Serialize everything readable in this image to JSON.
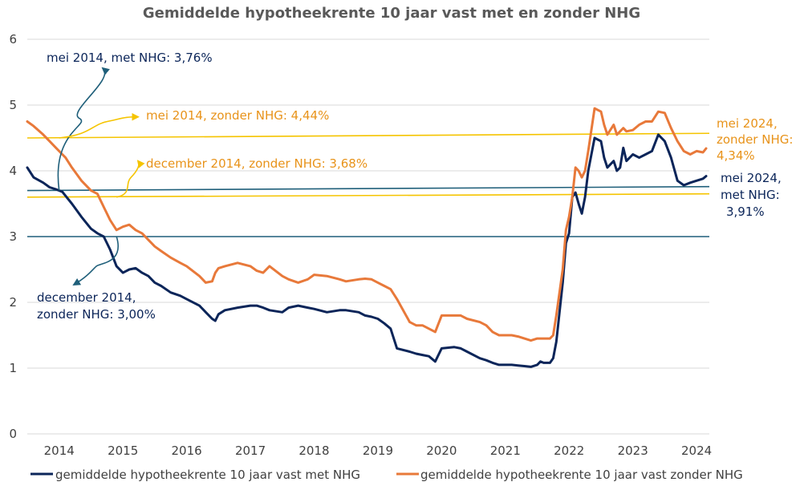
{
  "chart_data": {
    "type": "line",
    "title": "Gemiddelde hypotheekrente 10 jaar vast met en zonder NHG",
    "xlabel": "",
    "ylabel": "",
    "xlim": [
      2013.5,
      2024.2
    ],
    "ylim": [
      0,
      6
    ],
    "grid": true,
    "legend": "bottom",
    "x_ticks": [
      "2014",
      "2015",
      "2016",
      "2017",
      "2018",
      "2019",
      "2020",
      "2021",
      "2022",
      "2023",
      "2024"
    ],
    "y_ticks": [
      "0",
      "1",
      "2",
      "3",
      "4",
      "5",
      "6"
    ],
    "series": [
      {
        "name": "gemiddelde hypotheekrente 10 jaar vast met NHG",
        "color": "#0B2559",
        "x": [
          2013.5,
          2013.6,
          2013.75,
          2013.85,
          2013.95,
          2014.05,
          2014.1,
          2014.2,
          2014.35,
          2014.5,
          2014.6,
          2014.7,
          2014.8,
          2014.9,
          2015.0,
          2015.1,
          2015.2,
          2015.3,
          2015.4,
          2015.5,
          2015.6,
          2015.75,
          2015.9,
          2016.0,
          2016.2,
          2016.3,
          2016.4,
          2016.45,
          2016.5,
          2016.6,
          2016.8,
          2017.0,
          2017.1,
          2017.2,
          2017.3,
          2017.5,
          2017.6,
          2017.75,
          2017.9,
          2018.0,
          2018.2,
          2018.4,
          2018.5,
          2018.7,
          2018.8,
          2018.9,
          2019.0,
          2019.1,
          2019.2,
          2019.3,
          2019.5,
          2019.6,
          2019.7,
          2019.8,
          2019.9,
          2020.0,
          2020.2,
          2020.3,
          2020.4,
          2020.6,
          2020.7,
          2020.8,
          2020.9,
          2021.0,
          2021.1,
          2021.2,
          2021.3,
          2021.4,
          2021.5,
          2021.55,
          2021.6,
          2021.7,
          2021.75,
          2021.8,
          2021.9,
          2021.95,
          2022.0,
          2022.05,
          2022.1,
          2022.15,
          2022.2,
          2022.25,
          2022.3,
          2022.4,
          2022.5,
          2022.55,
          2022.6,
          2022.7,
          2022.75,
          2022.8,
          2022.85,
          2022.9,
          2023.0,
          2023.1,
          2023.2,
          2023.3,
          2023.4,
          2023.5,
          2023.6,
          2023.7,
          2023.8,
          2023.9,
          2024.0,
          2024.1,
          2024.15
        ],
        "y": [
          4.05,
          3.9,
          3.82,
          3.75,
          3.72,
          3.68,
          3.62,
          3.5,
          3.3,
          3.12,
          3.05,
          3.0,
          2.8,
          2.55,
          2.45,
          2.5,
          2.52,
          2.45,
          2.4,
          2.3,
          2.25,
          2.15,
          2.1,
          2.05,
          1.95,
          1.85,
          1.75,
          1.72,
          1.82,
          1.88,
          1.92,
          1.95,
          1.95,
          1.92,
          1.88,
          1.85,
          1.92,
          1.95,
          1.92,
          1.9,
          1.85,
          1.88,
          1.88,
          1.85,
          1.8,
          1.78,
          1.75,
          1.68,
          1.6,
          1.3,
          1.25,
          1.22,
          1.2,
          1.18,
          1.1,
          1.3,
          1.32,
          1.3,
          1.25,
          1.15,
          1.12,
          1.08,
          1.05,
          1.05,
          1.05,
          1.04,
          1.03,
          1.02,
          1.05,
          1.1,
          1.08,
          1.08,
          1.15,
          1.4,
          2.3,
          2.9,
          3.05,
          3.6,
          3.67,
          3.5,
          3.35,
          3.6,
          4.0,
          4.5,
          4.45,
          4.2,
          4.05,
          4.15,
          4.0,
          4.05,
          4.35,
          4.15,
          4.25,
          4.2,
          4.25,
          4.3,
          4.55,
          4.45,
          4.2,
          3.85,
          3.78,
          3.82,
          3.85,
          3.88,
          3.92
        ]
      },
      {
        "name": "gemiddelde hypotheekrente 10 jaar vast zonder NHG",
        "color": "#E8793A",
        "x": [
          2013.5,
          2013.6,
          2013.75,
          2013.85,
          2013.95,
          2014.05,
          2014.1,
          2014.2,
          2014.35,
          2014.5,
          2014.6,
          2014.7,
          2014.8,
          2014.9,
          2015.0,
          2015.1,
          2015.2,
          2015.3,
          2015.4,
          2015.5,
          2015.6,
          2015.75,
          2015.9,
          2016.0,
          2016.2,
          2016.3,
          2016.4,
          2016.45,
          2016.5,
          2016.6,
          2016.8,
          2017.0,
          2017.1,
          2017.2,
          2017.3,
          2017.5,
          2017.6,
          2017.75,
          2017.9,
          2018.0,
          2018.2,
          2018.4,
          2018.5,
          2018.7,
          2018.8,
          2018.9,
          2019.0,
          2019.1,
          2019.2,
          2019.3,
          2019.5,
          2019.6,
          2019.7,
          2019.8,
          2019.9,
          2020.0,
          2020.2,
          2020.3,
          2020.4,
          2020.6,
          2020.7,
          2020.8,
          2020.9,
          2021.0,
          2021.1,
          2021.2,
          2021.3,
          2021.4,
          2021.5,
          2021.55,
          2021.6,
          2021.7,
          2021.75,
          2021.8,
          2021.9,
          2021.95,
          2022.0,
          2022.05,
          2022.1,
          2022.15,
          2022.2,
          2022.25,
          2022.3,
          2022.4,
          2022.5,
          2022.55,
          2022.6,
          2022.7,
          2022.75,
          2022.8,
          2022.85,
          2022.9,
          2023.0,
          2023.1,
          2023.2,
          2023.3,
          2023.4,
          2023.5,
          2023.6,
          2023.7,
          2023.8,
          2023.9,
          2024.0,
          2024.1,
          2024.15
        ],
        "y": [
          4.75,
          4.68,
          4.55,
          4.45,
          4.35,
          4.25,
          4.2,
          4.05,
          3.85,
          3.7,
          3.65,
          3.45,
          3.25,
          3.1,
          3.15,
          3.18,
          3.1,
          3.05,
          2.95,
          2.85,
          2.78,
          2.68,
          2.6,
          2.55,
          2.4,
          2.3,
          2.32,
          2.45,
          2.52,
          2.55,
          2.6,
          2.55,
          2.48,
          2.45,
          2.55,
          2.4,
          2.35,
          2.3,
          2.35,
          2.42,
          2.4,
          2.35,
          2.32,
          2.35,
          2.36,
          2.35,
          2.3,
          2.25,
          2.2,
          2.05,
          1.7,
          1.65,
          1.65,
          1.6,
          1.55,
          1.8,
          1.8,
          1.8,
          1.75,
          1.7,
          1.65,
          1.55,
          1.5,
          1.5,
          1.5,
          1.48,
          1.45,
          1.42,
          1.45,
          1.45,
          1.45,
          1.45,
          1.5,
          1.8,
          2.5,
          3.1,
          3.3,
          3.6,
          4.05,
          4.0,
          3.9,
          4.0,
          4.3,
          4.95,
          4.9,
          4.7,
          4.55,
          4.7,
          4.55,
          4.6,
          4.65,
          4.6,
          4.62,
          4.7,
          4.75,
          4.75,
          4.9,
          4.88,
          4.65,
          4.45,
          4.3,
          4.25,
          4.3,
          4.28,
          4.34
        ]
      }
    ],
    "reference_lines": [
      {
        "x": [
          2013.5,
          2024.2
        ],
        "y": [
          3.0,
          3.0
        ],
        "color": "#1F5F7A"
      },
      {
        "x": [
          2013.5,
          2024.2
        ],
        "y": [
          3.7,
          3.76
        ],
        "color": "#1F5F7A"
      },
      {
        "x": [
          2013.5,
          2024.2
        ],
        "y": [
          3.6,
          3.65
        ],
        "color": "#F5C400"
      },
      {
        "x": [
          2013.5,
          2024.2
        ],
        "y": [
          4.5,
          4.57
        ],
        "color": "#F5C400"
      }
    ],
    "annotations": [
      {
        "lines": [
          "mei 2014, met NHG: 3,76%"
        ],
        "color": "#0B2559"
      },
      {
        "lines": [
          "mei 2014, zonder NHG: 4,44%"
        ],
        "color": "#E8931A"
      },
      {
        "lines": [
          "december 2014, zonder NHG: 3,68%"
        ],
        "color": "#E8931A"
      },
      {
        "lines": [
          "december 2014,",
          "zonder NHG: 3,00%"
        ],
        "color": "#0B2559"
      },
      {
        "lines": [
          "mei 2024,",
          "zonder NHG:",
          "4,34%"
        ],
        "color": "#E8931A"
      },
      {
        "lines": [
          "mei 2024,",
          "met NHG:",
          "3,91%"
        ],
        "color": "#0B2559"
      }
    ]
  }
}
